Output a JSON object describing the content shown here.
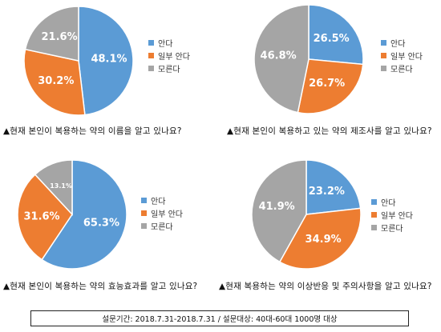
{
  "colors": {
    "know": "#5b9bd5",
    "partial": "#ed7d31",
    "dontknow": "#a5a5a5"
  },
  "chart_data": [
    {
      "type": "pie",
      "categories": [
        "안다",
        "일부 안다",
        "모른다"
      ],
      "values": [
        48.1,
        30.2,
        21.6
      ],
      "labels": [
        "48.1%",
        "30.2%",
        "21.6%"
      ],
      "title": "▲현재 본인이 복용하는 약의 이름을 알고 있나요?",
      "legend": "right"
    },
    {
      "type": "pie",
      "categories": [
        "안다",
        "일부 안다",
        "모른다"
      ],
      "values": [
        26.5,
        26.7,
        46.8
      ],
      "labels": [
        "26.5%",
        "26.7%",
        "46.8%"
      ],
      "title": "▲현재 본인이 복용하고 있는 약의 제조사를 알고 있나요?",
      "legend": "right"
    },
    {
      "type": "pie",
      "categories": [
        "안다",
        "일부 안다",
        "모른다"
      ],
      "values": [
        65.3,
        31.6,
        13.1
      ],
      "labels": [
        "65.3%",
        "31.6%",
        "13.1%"
      ],
      "title": "▲현재 본인이 복용하는 약의 효능효과를 알고 있나요?",
      "legend": "right"
    },
    {
      "type": "pie",
      "categories": [
        "안다",
        "일부 안다",
        "모른다"
      ],
      "values": [
        23.2,
        34.9,
        41.9
      ],
      "labels": [
        "23.2%",
        "34.9%",
        "41.9%"
      ],
      "title": "▲현재 복용하는 약의 이상반응 및 주의사항을 알고 있나요?",
      "legend": "right"
    }
  ],
  "footer": "설문기간: 2018.7.31-2018.7.31 / 설문대상: 40대-60대 1000명 대상"
}
